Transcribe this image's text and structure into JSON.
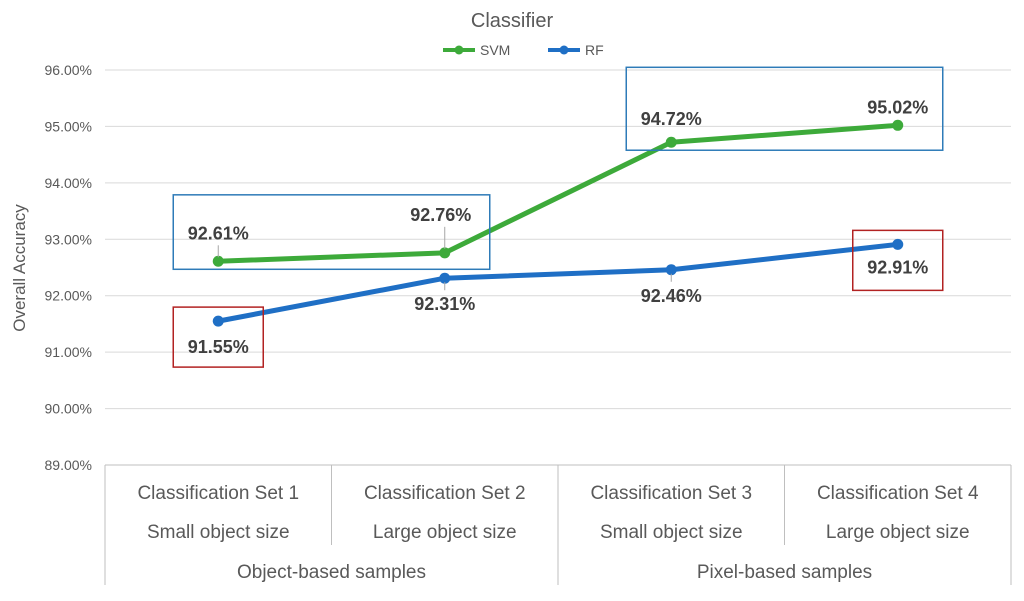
{
  "chart_data": {
    "type": "line",
    "title": "Classifier",
    "ylabel": "Overall Accuracy",
    "xlabel": "",
    "ylim": [
      89.0,
      96.0
    ],
    "yticks": [
      "89.00%",
      "90.00%",
      "91.00%",
      "92.00%",
      "93.00%",
      "94.00%",
      "95.00%",
      "96.00%"
    ],
    "y_tick_values": [
      89,
      90,
      91,
      92,
      93,
      94,
      95,
      96
    ],
    "categories": [
      {
        "set": "Classification Set 1",
        "size": "Small object size"
      },
      {
        "set": "Classification Set 2",
        "size": "Large object size"
      },
      {
        "set": "Classification Set 3",
        "size": "Small object size"
      },
      {
        "set": "Classification Set 4",
        "size": "Large object size"
      }
    ],
    "groups": [
      {
        "label": "Object-based samples",
        "span": [
          0,
          1
        ]
      },
      {
        "label": "Pixel-based samples",
        "span": [
          2,
          3
        ]
      }
    ],
    "legend_position": "top",
    "grid": true,
    "series": [
      {
        "name": "SVM",
        "color": "#3DAA3A",
        "values": [
          92.61,
          92.76,
          94.72,
          95.02
        ],
        "labels": [
          "92.61%",
          "92.76%",
          "94.72%",
          "95.02%"
        ]
      },
      {
        "name": "RF",
        "color": "#1F6FC5",
        "values": [
          91.55,
          92.31,
          92.46,
          92.91
        ],
        "labels": [
          "91.55%",
          "92.31%",
          "92.46%",
          "92.91%"
        ]
      }
    ],
    "highlight_boxes": [
      {
        "series": "SVM",
        "points": [
          0,
          1
        ],
        "color": "#2E7BB8"
      },
      {
        "series": "SVM",
        "points": [
          2,
          3
        ],
        "color": "#2E7BB8"
      },
      {
        "series": "RF",
        "points": [
          0
        ],
        "color": "#B22222"
      },
      {
        "series": "RF",
        "points": [
          3
        ],
        "color": "#B22222"
      }
    ]
  }
}
